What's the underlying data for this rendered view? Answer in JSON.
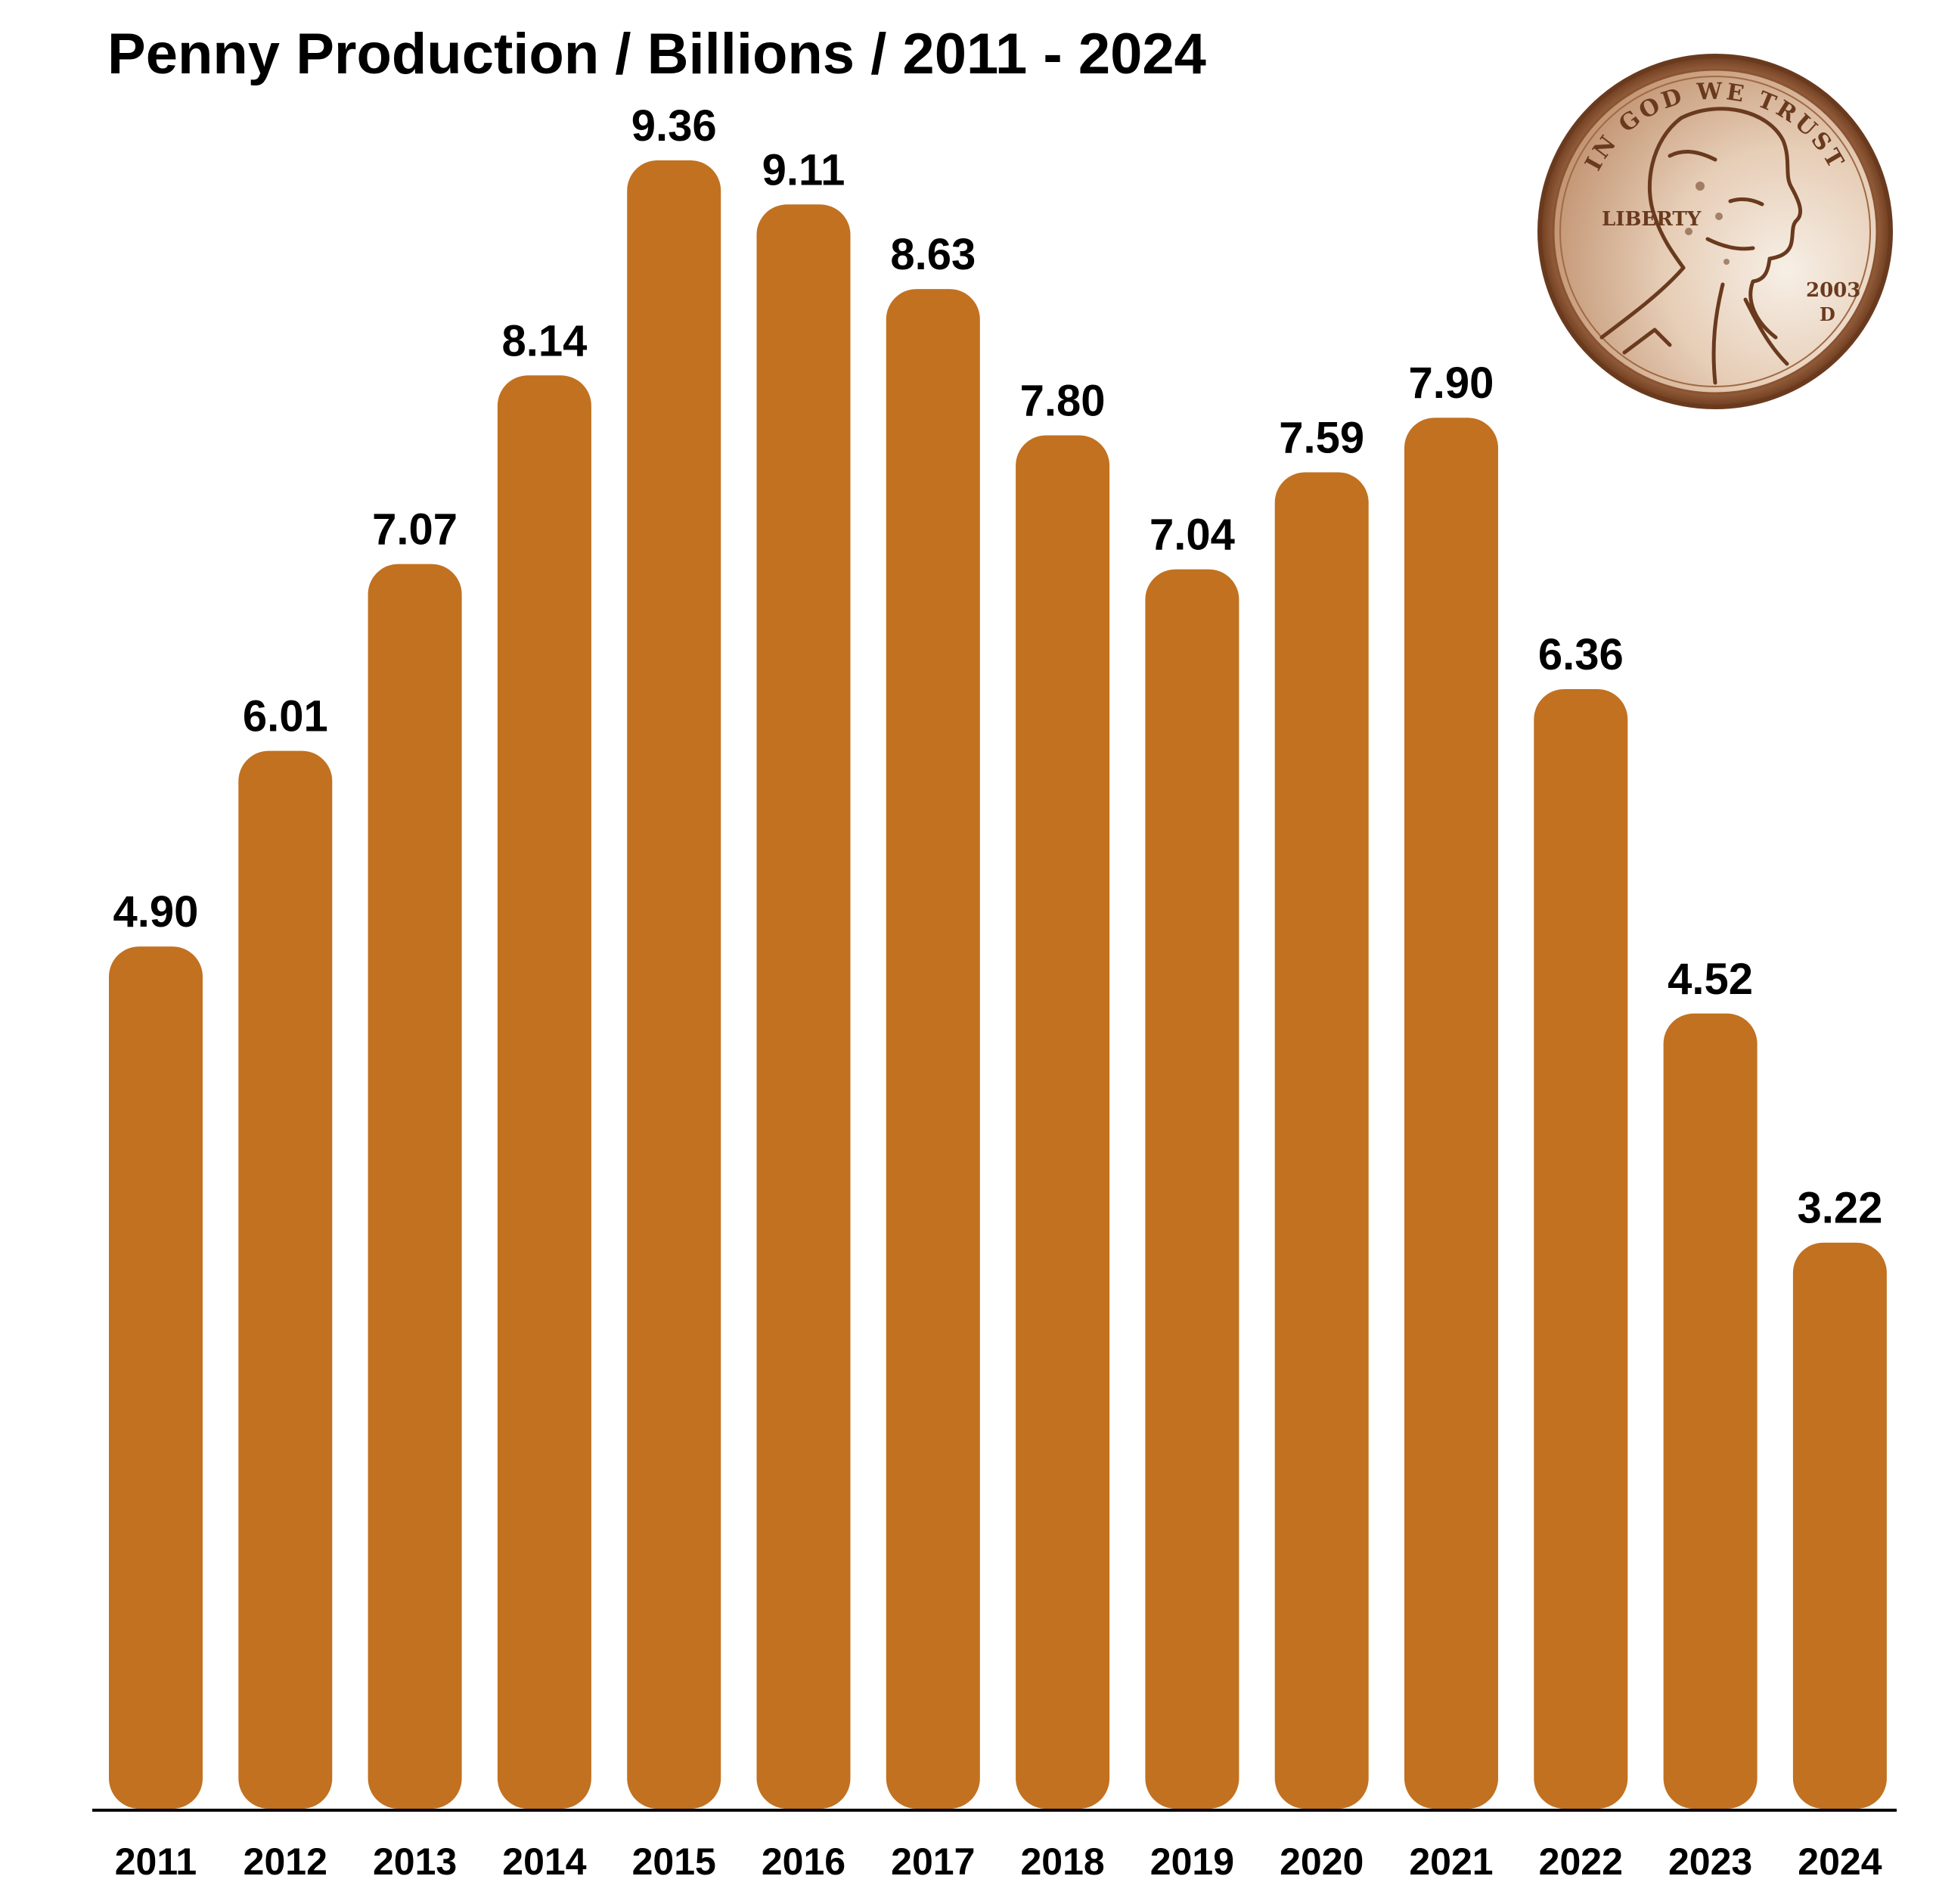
{
  "chart_data": {
    "type": "bar",
    "title": "Penny Production / Billions / 2011 - 2024",
    "categories": [
      "2011",
      "2012",
      "2013",
      "2014",
      "2015",
      "2016",
      "2017",
      "2018",
      "2019",
      "2020",
      "2021",
      "2022",
      "2023",
      "2024"
    ],
    "values": [
      4.9,
      6.01,
      7.07,
      8.14,
      9.36,
      9.11,
      8.63,
      7.8,
      7.04,
      7.59,
      7.9,
      6.36,
      4.52,
      3.22
    ],
    "value_labels": [
      "4.90",
      "6.01",
      "7.07",
      "8.14",
      "9.36",
      "9.11",
      "8.63",
      "7.80",
      "7.04",
      "7.59",
      "7.90",
      "6.36",
      "4.52",
      "3.22"
    ],
    "xlabel": "",
    "ylabel": "",
    "ylim": [
      0,
      9.36
    ],
    "grid": false,
    "legend": "none",
    "bar_color": "#c17120",
    "axis_color": "#000000",
    "value_labels_position": "above bars"
  },
  "decoration": {
    "icon": "penny-coin-icon",
    "coin_inscriptions": {
      "motto": "IN GOD WE TRUST",
      "liberty": "LIBERTY",
      "year": "2003",
      "mint_mark": "D"
    },
    "coin_colors": {
      "rim": "#7a4524",
      "face": "#d7b596",
      "highlight": "#f6ede4",
      "ink": "#6a3a1e"
    }
  }
}
